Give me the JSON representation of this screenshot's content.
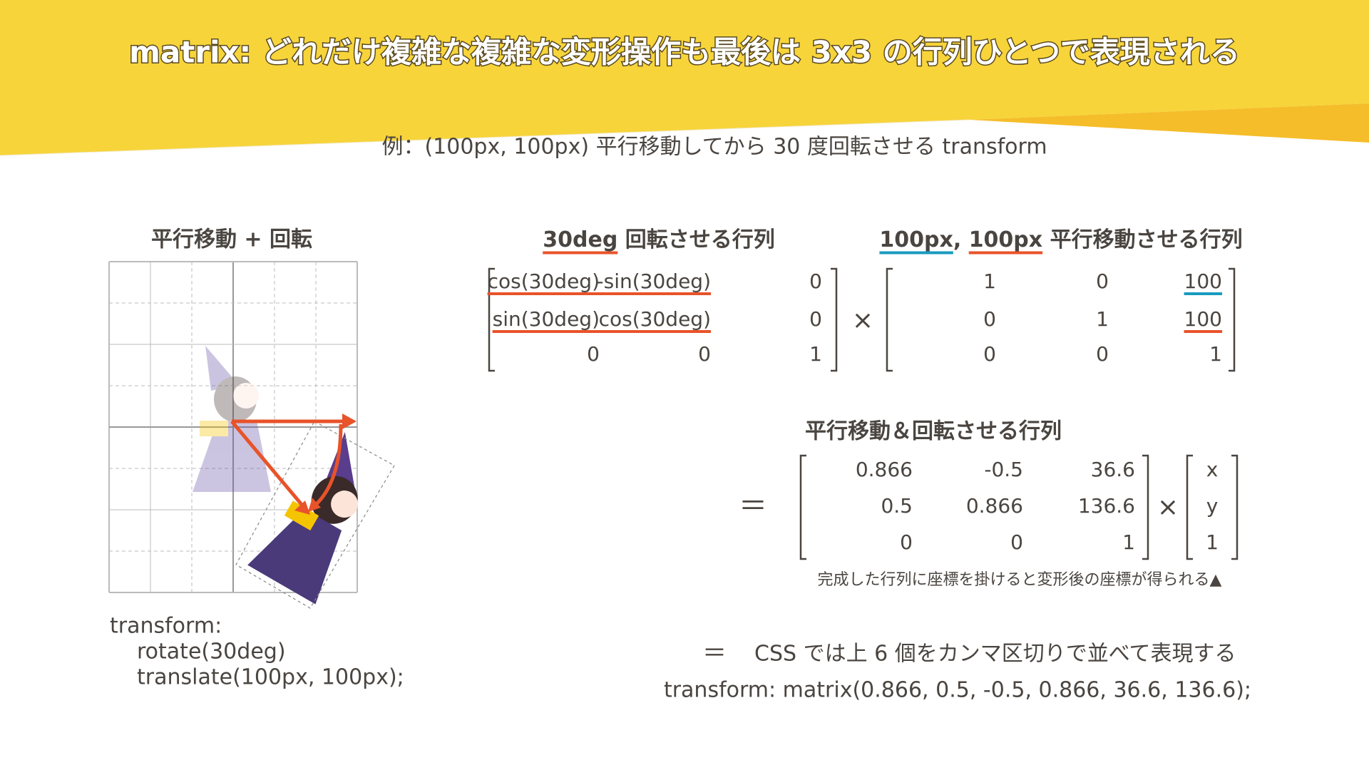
{
  "title": "matrix: どれだけ複雑な複雑な変形操作も最後は 3x3 の行列ひとつで表現される",
  "subtitle": "例：(100px, 100px) 平行移動してから 30 度回転させる transform",
  "example": {
    "heading": "平行移動 + 回転",
    "code": [
      "transform:",
      "rotate(30deg)",
      "translate(100px, 100px);"
    ]
  },
  "rotation_matrix": {
    "heading": [
      "30deg",
      " 回転させる行列"
    ],
    "rows": [
      [
        "cos(30deg)",
        "-sin(30deg)",
        "0"
      ],
      [
        "sin(30deg)",
        "cos(30deg)",
        "0"
      ],
      [
        "0",
        "0",
        "1"
      ]
    ]
  },
  "multiply_sign": "×",
  "translation_matrix": {
    "heading": [
      "100px",
      ", ",
      "100px",
      " 平行移動させる行列"
    ],
    "rows": [
      [
        "1",
        "0",
        "100"
      ],
      [
        "0",
        "1",
        "100"
      ],
      [
        "0",
        "0",
        "1"
      ]
    ]
  },
  "result": {
    "heading": "平行移動＆回転させる行列",
    "equals": "＝",
    "rows": [
      [
        "0.866",
        "-0.5",
        "36.6"
      ],
      [
        "0.5",
        "0.866",
        "136.6"
      ],
      [
        "0",
        "0",
        "1"
      ]
    ],
    "multiply_sign": "×",
    "vector": [
      "x",
      "y",
      "1"
    ],
    "caption": "完成した行列に座標を掛けると変形後の座標が得られる▲"
  },
  "css": {
    "equals": "＝",
    "note": "CSS では上 6 個をカンマ区切りで並べて表現する",
    "code": "transform: matrix(0.866, 0.5, -0.5, 0.866, 36.6, 136.6);"
  }
}
